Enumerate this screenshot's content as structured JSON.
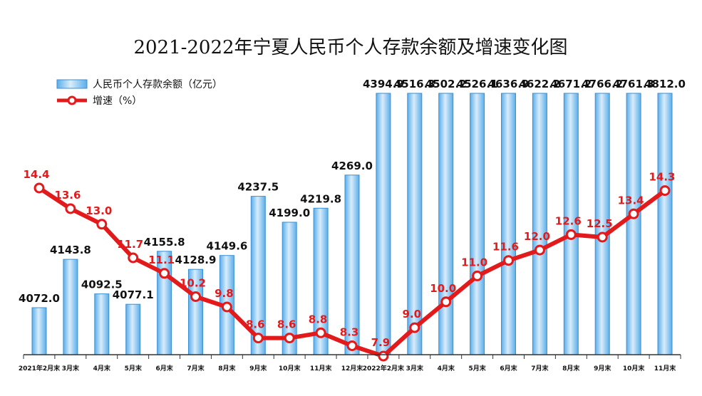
{
  "colors": {
    "bar_fill_top": "#d9ecfb",
    "bar_fill_bottom": "#5aaeea",
    "bar_stroke": "#3d8fd1",
    "rate_line": "#e31a1c",
    "axis": "#333333"
  },
  "chart_data": {
    "type": "bar",
    "title": "2021-2022年宁夏人民币个人存款余额及增速变化图",
    "legend_placement": "top-left",
    "categories": [
      "2021年2月末",
      "3月末",
      "4月末",
      "5月末",
      "6月末",
      "7月末",
      "8月末",
      "9月末",
      "10月末",
      "11月末",
      "12月末",
      "2022年2月末",
      "3月末",
      "4月末",
      "5月末",
      "6月末",
      "7月末",
      "8月末",
      "9月末",
      "10月末",
      "11月末"
    ],
    "series": [
      {
        "name": "人民币个人存款余额（亿元）",
        "type": "bar",
        "values": [
          4072.0,
          4143.8,
          4092.5,
          4077.1,
          4155.8,
          4128.9,
          4149.6,
          4237.5,
          4199.0,
          4219.8,
          4269.0,
          4394.9,
          4516.3,
          4502.2,
          4526.1,
          4636.9,
          4622.2,
          4671.2,
          4766.2,
          4761.3,
          4812.0
        ],
        "labels": [
          "4072.0",
          "4143.8",
          "4092.5",
          "4077.1",
          "4155.8",
          "4128.9",
          "4149.6",
          "4237.5",
          "4199.0",
          "4219.8",
          "4269.0",
          "4394.9",
          "4516.3",
          "4502.2",
          "4526.1",
          "4636.9",
          "4622.2",
          "4671.2",
          "4766.2",
          "4761.3",
          "4812.0"
        ]
      },
      {
        "name": "增速（%）",
        "type": "line",
        "values": [
          14.4,
          13.6,
          13.0,
          11.7,
          11.1,
          10.2,
          9.8,
          8.6,
          8.6,
          8.8,
          8.3,
          7.9,
          9.0,
          10.0,
          11.0,
          11.6,
          12.0,
          12.6,
          12.5,
          13.4,
          14.3
        ],
        "labels": [
          "14.4",
          "13.6",
          "13.0",
          "11.7",
          "11.1",
          "10.2",
          "9.8",
          "8.6",
          "8.6",
          "8.8",
          "8.3",
          "7.9",
          "9.0",
          "10.0",
          "11.0",
          "11.6",
          "12.0",
          "12.6",
          "12.5",
          "13.4",
          "14.3"
        ]
      }
    ],
    "bar_axis_range": [
      4000,
      4400
    ],
    "rate_axis_range": [
      7.9,
      14.4
    ],
    "grid": false
  }
}
